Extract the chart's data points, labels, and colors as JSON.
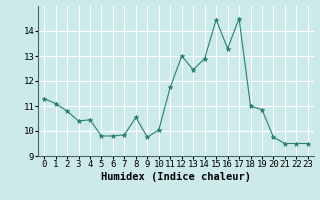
{
  "x": [
    0,
    1,
    2,
    3,
    4,
    5,
    6,
    7,
    8,
    9,
    10,
    11,
    12,
    13,
    14,
    15,
    16,
    17,
    18,
    19,
    20,
    21,
    22,
    23
  ],
  "y": [
    11.3,
    11.1,
    10.8,
    10.4,
    10.45,
    9.8,
    9.8,
    9.85,
    10.55,
    9.75,
    10.05,
    11.75,
    13.0,
    12.45,
    12.9,
    14.45,
    13.3,
    14.5,
    11.0,
    10.85,
    9.75,
    9.5,
    9.5,
    9.5
  ],
  "line_color": "#2a7f6f",
  "marker": "*",
  "marker_color": "#2a7f6f",
  "bg_color": "#cceaea",
  "grid_color": "#ffffff",
  "xlabel": "Humidex (Indice chaleur)",
  "xlim": [
    -0.5,
    23.5
  ],
  "ylim": [
    9,
    15
  ],
  "yticks": [
    9,
    10,
    11,
    12,
    13,
    14
  ],
  "xticks": [
    0,
    1,
    2,
    3,
    4,
    5,
    6,
    7,
    8,
    9,
    10,
    11,
    12,
    13,
    14,
    15,
    16,
    17,
    18,
    19,
    20,
    21,
    22,
    23
  ],
  "tick_fontsize": 6.5,
  "label_fontsize": 7.5
}
